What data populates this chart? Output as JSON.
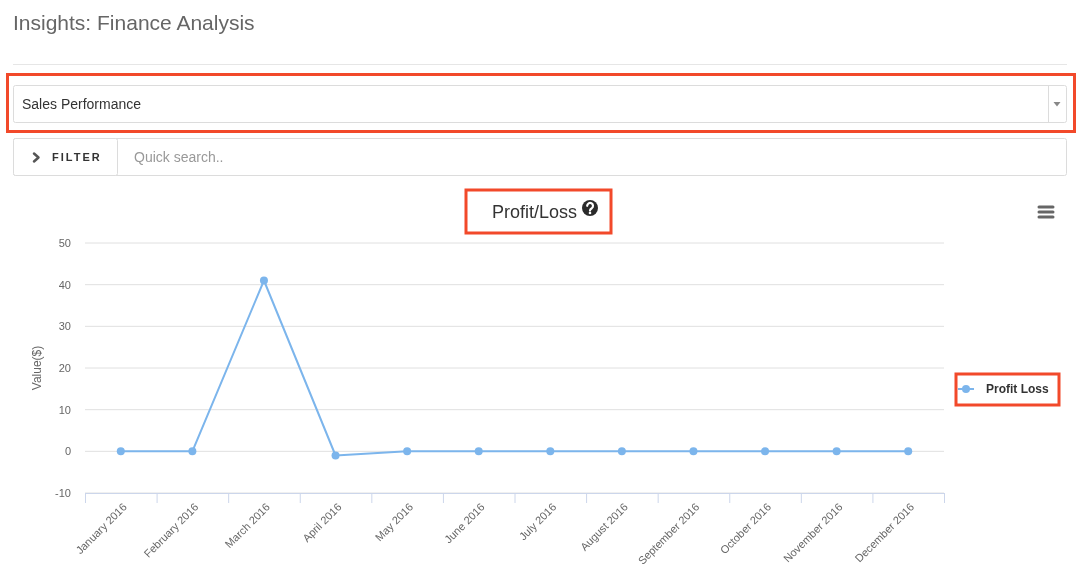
{
  "chart_data": {
    "type": "line",
    "title": "Profit/Loss",
    "ylabel": "Value($)",
    "annotations": [
      "Insights: Finance Analysis",
      "Sales Performance",
      "FILTER",
      "Quick search.."
    ],
    "categories": [
      "January 2016",
      "February 2016",
      "March 2016",
      "April 2016",
      "May 2016",
      "June 2016",
      "July 2016",
      "August 2016",
      "September 2016",
      "October 2016",
      "November 2016",
      "December 2016"
    ],
    "series": [
      {
        "name": "Profit Loss",
        "color": "#7cb5ec",
        "values": [
          0,
          0,
          41,
          -1,
          0,
          0,
          0,
          0,
          0,
          0,
          0,
          0
        ]
      }
    ],
    "ylim": [
      -10,
      50
    ],
    "yticks": [
      -10,
      0,
      10,
      20,
      30,
      40,
      50
    ],
    "grid": "y",
    "legend": "right",
    "marker": "circle",
    "line_style": "solid"
  }
}
